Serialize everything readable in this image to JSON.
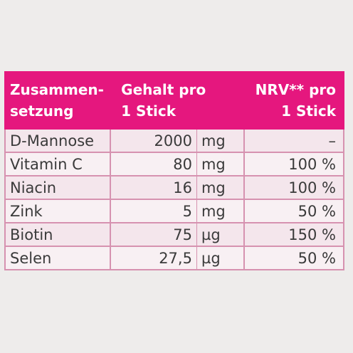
{
  "table": {
    "header": [
      [
        "Zusammen-",
        "setzung"
      ],
      [
        "Gehalt pro",
        "1 Stick"
      ],
      [
        "NRV** pro",
        "1 Stick"
      ]
    ],
    "rows": [
      [
        "D-Mannose",
        "2000",
        "mg",
        "–"
      ],
      [
        "Vitamin C",
        "80",
        "mg",
        "100 %"
      ],
      [
        "Niacin",
        "16",
        "mg",
        "100 %"
      ],
      [
        "Zink",
        "5",
        "mg",
        "50 %"
      ],
      [
        "Biotin",
        "75",
        "µg",
        "150 %"
      ],
      [
        "Selen",
        "27,5",
        "µg",
        "50 %"
      ]
    ]
  }
}
